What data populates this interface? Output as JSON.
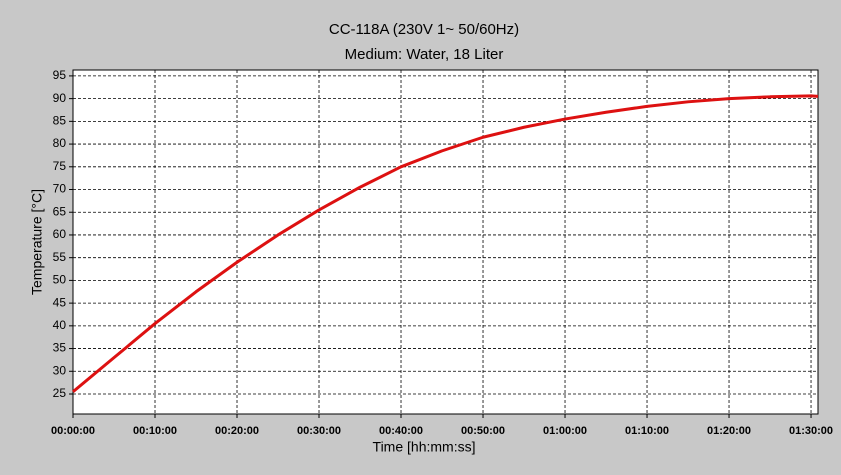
{
  "chart_data": {
    "type": "line",
    "title": "CC-118A (230V 1~ 50/60Hz)",
    "subtitle": "Medium: Water, 18 Liter",
    "x_label": "Time [hh:mm:ss]",
    "y_label": "Temperature [°C]",
    "x": [
      0,
      300,
      600,
      900,
      1200,
      1500,
      1800,
      2100,
      2400,
      2700,
      3000,
      3300,
      3600,
      3900,
      4200,
      4500,
      4800,
      5100,
      5400,
      5451
    ],
    "series": [
      {
        "name": "Temperature",
        "color": "#dd1111",
        "values": [
          25.5,
          33,
          40.5,
          47.5,
          54,
          60,
          65.5,
          70.5,
          75,
          78.5,
          81.5,
          83.7,
          85.5,
          87,
          88.3,
          89.3,
          90,
          90.4,
          90.6,
          90.5
        ]
      }
    ],
    "xlim": [
      0,
      5451
    ],
    "xticks": [
      {
        "value": 0,
        "label": "00:00:00"
      },
      {
        "value": 600,
        "label": "00:10:00"
      },
      {
        "value": 1200,
        "label": "00:20:00"
      },
      {
        "value": 1800,
        "label": "00:30:00"
      },
      {
        "value": 2400,
        "label": "00:40:00"
      },
      {
        "value": 3000,
        "label": "00:50:00"
      },
      {
        "value": 3600,
        "label": "01:00:00"
      },
      {
        "value": 4200,
        "label": "01:10:00"
      },
      {
        "value": 4800,
        "label": "01:20:00"
      },
      {
        "value": 5400,
        "label": "01:30:00"
      }
    ],
    "ylim": [
      20.6,
      96.3
    ],
    "yticks": [
      25,
      30,
      35,
      40,
      45,
      50,
      55,
      60,
      65,
      70,
      75,
      80,
      85,
      90,
      95
    ],
    "grid": true
  }
}
